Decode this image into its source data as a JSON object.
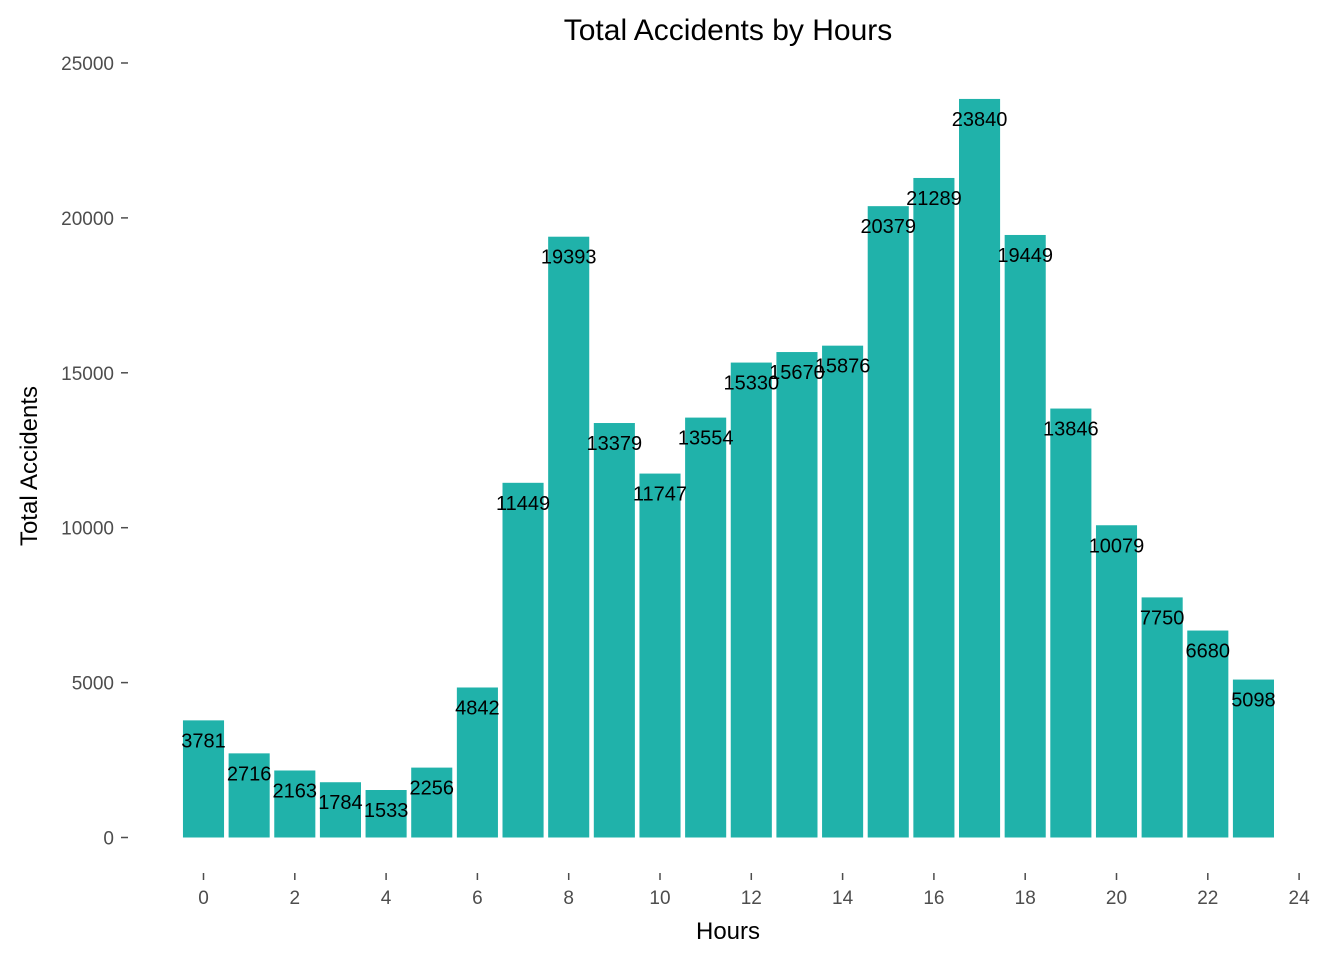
{
  "chart_data": {
    "type": "bar",
    "title": "Total Accidents by Hours",
    "xlabel": "Hours",
    "ylabel": "Total Accidents",
    "categories": [
      0,
      1,
      2,
      3,
      4,
      5,
      6,
      7,
      8,
      9,
      10,
      11,
      12,
      13,
      14,
      15,
      16,
      17,
      18,
      19,
      20,
      21,
      22,
      23
    ],
    "values": [
      3781,
      2716,
      2163,
      1784,
      1533,
      2256,
      4842,
      11449,
      19393,
      13379,
      11747,
      13554,
      15330,
      15670,
      15876,
      20379,
      21289,
      23840,
      19449,
      13846,
      10079,
      7750,
      6680,
      5098
    ],
    "xlim": [
      -0.5,
      24
    ],
    "ylim": [
      0,
      25000
    ],
    "xticks": [
      "0",
      "2",
      "4",
      "6",
      "8",
      "10",
      "12",
      "14",
      "16",
      "18",
      "20",
      "22",
      "24"
    ],
    "yticks": [
      "0",
      "5000",
      "10000",
      "15000",
      "20000",
      "25000"
    ],
    "grid": false,
    "legend": "none",
    "bar_color": "#20b2aa",
    "label_position": "top-inside"
  }
}
